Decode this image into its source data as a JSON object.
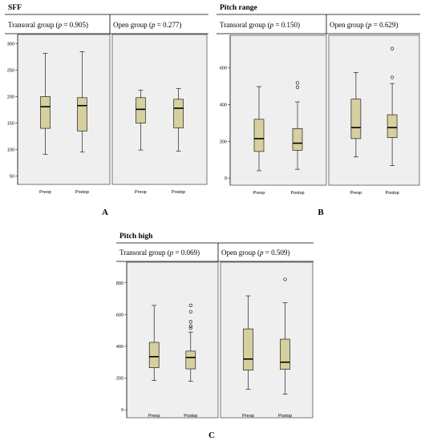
{
  "figure_letters": [
    "A",
    "B",
    "C"
  ],
  "colors": {
    "box_fill": "#d6cf9e",
    "plot_bg": "#efefef",
    "median": "#000000",
    "frame": "#555555"
  },
  "chart_data": [
    {
      "type": "boxplot",
      "title": "SFF",
      "letter": "A",
      "ylim": [
        40,
        310
      ],
      "yticks": [
        50,
        100,
        150,
        200,
        250,
        300
      ],
      "grid": false,
      "panels": [
        {
          "group_label": "Transoral group (p = 0.905)",
          "group_name": "Transoral group",
          "p_value": "0.905",
          "categories": [
            "Preop",
            "Postop"
          ],
          "boxes": [
            {
              "label": "Preop",
              "min": 91,
              "q1": 140,
              "median": 181,
              "q3": 200,
              "max": 282,
              "outliers": []
            },
            {
              "label": "Postop",
              "min": 95,
              "q1": 135,
              "median": 183,
              "q3": 198,
              "max": 285,
              "outliers": []
            }
          ]
        },
        {
          "group_label": "Open group (p = 0.277)",
          "group_name": "Open group",
          "p_value": "0.277",
          "categories": [
            "Preop",
            "Postop"
          ],
          "boxes": [
            {
              "label": "Preop",
              "min": 99,
              "q1": 150,
              "median": 176,
              "q3": 198,
              "max": 212,
              "outliers": []
            },
            {
              "label": "Postop",
              "min": 97,
              "q1": 141,
              "median": 178,
              "q3": 195,
              "max": 215,
              "outliers": []
            }
          ]
        }
      ]
    },
    {
      "type": "boxplot",
      "title": "Pitch range",
      "letter": "B",
      "ylim": [
        -30,
        760
      ],
      "yticks": [
        0,
        200,
        400,
        600
      ],
      "grid": false,
      "panels": [
        {
          "group_label": "Transoral group (p = 0.150)",
          "group_name": "Transoral group",
          "p_value": "0.150",
          "categories": [
            "Preop",
            "Postop"
          ],
          "boxes": [
            {
              "label": "Preop",
              "min": 40,
              "q1": 145,
              "median": 215,
              "q3": 320,
              "max": 498,
              "outliers": []
            },
            {
              "label": "Postop",
              "min": 48,
              "q1": 152,
              "median": 190,
              "q3": 270,
              "max": 415,
              "outliers": [
                495,
                518
              ]
            }
          ]
        },
        {
          "group_label": "Open group (p = 0.629)",
          "group_name": "Open group",
          "p_value": "0.629",
          "categories": [
            "Preop",
            "Postop"
          ],
          "boxes": [
            {
              "label": "Preop",
              "min": 115,
              "q1": 215,
              "median": 275,
              "q3": 430,
              "max": 575,
              "outliers": []
            },
            {
              "label": "Postop",
              "min": 68,
              "q1": 220,
              "median": 275,
              "q3": 345,
              "max": 515,
              "outliers": [
                548,
                705
              ]
            }
          ]
        }
      ]
    },
    {
      "type": "boxplot",
      "title": "Pitch high",
      "letter": "C",
      "ylim": [
        -40,
        900
      ],
      "yticks": [
        0,
        200,
        400,
        600,
        800
      ],
      "grid": false,
      "panels": [
        {
          "group_label": "Transoral group (p = 0.069)",
          "group_name": "Transoral group",
          "p_value": "0.069",
          "categories": [
            "Preop",
            "Postop"
          ],
          "boxes": [
            {
              "label": "Preop",
              "min": 185,
              "q1": 265,
              "median": 335,
              "q3": 425,
              "max": 658,
              "outliers": []
            },
            {
              "label": "Postop",
              "min": 180,
              "q1": 258,
              "median": 330,
              "q3": 370,
              "max": 490,
              "outliers": [
                515,
                528,
                555,
                618,
                658
              ]
            }
          ]
        },
        {
          "group_label": "Open group (p = 0.509)",
          "group_name": "Open group",
          "p_value": "0.509",
          "categories": [
            "Preop",
            "Postop"
          ],
          "boxes": [
            {
              "label": "Preop",
              "min": 130,
              "q1": 250,
              "median": 320,
              "q3": 510,
              "max": 718,
              "outliers": []
            },
            {
              "label": "Postop",
              "min": 98,
              "q1": 255,
              "median": 300,
              "q3": 445,
              "max": 675,
              "outliers": [
                822
              ]
            }
          ]
        }
      ]
    }
  ]
}
